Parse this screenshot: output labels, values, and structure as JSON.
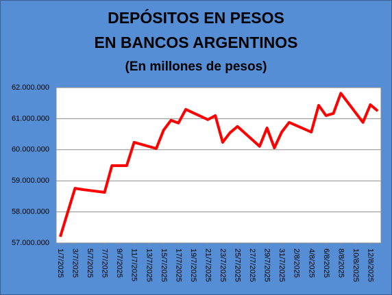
{
  "chart_data": {
    "type": "line",
    "title": [
      "DEPÓSITOS EN PESOS",
      "EN BANCOS ARGENTINOS"
    ],
    "subtitle": "(En millones de pesos)",
    "x": [
      "1/7/2025",
      "2/7/2025",
      "3/7/2025",
      "4/7/2025",
      "7/7/2025",
      "8/7/2025",
      "10/7/2025",
      "11/7/2025",
      "14/7/2025",
      "15/7/2025",
      "16/7/2025",
      "17/7/2025",
      "18/7/2025",
      "21/7/2025",
      "22/7/2025",
      "23/7/2025",
      "24/7/2025",
      "25/7/2025",
      "28/7/2025",
      "29/7/2025",
      "30/7/2025",
      "31/7/2025",
      "1/8/2025",
      "4/8/2025",
      "5/8/2025",
      "6/8/2025",
      "7/8/2025",
      "8/8/2025",
      "11/8/2025",
      "12/8/2025",
      "13/8/2025"
    ],
    "series": [
      {
        "name": "Depósitos",
        "color": "#ff0000",
        "values": [
          57200000,
          57980000,
          58760000,
          58720000,
          58630000,
          59490000,
          59490000,
          60240000,
          60040000,
          60630000,
          60950000,
          60860000,
          61300000,
          60970000,
          61100000,
          60240000,
          60550000,
          60750000,
          60110000,
          60700000,
          60060000,
          60570000,
          60880000,
          60570000,
          61430000,
          61100000,
          61170000,
          61820000,
          60880000,
          61450000,
          61250000
        ]
      }
    ],
    "xticks": [
      "1/7/2025",
      "3/7/2025",
      "5/7/2025",
      "7/7/2025",
      "9/7/2025",
      "11/7/2025",
      "13/7/2025",
      "15/7/2025",
      "17/7/2025",
      "19/7/2025",
      "21/7/2025",
      "23/7/2025",
      "25/7/2025",
      "27/7/2025",
      "29/7/2025",
      "31/7/2025",
      "2/8/2025",
      "4/8/2025",
      "6/8/2025",
      "8/8/2025",
      "10/8/2025",
      "12/8/2025"
    ],
    "ylim": [
      57000000,
      62000000
    ],
    "yticks": [
      {
        "value": 57000000,
        "label": "57.000.000"
      },
      {
        "value": 58000000,
        "label": "58.000.000"
      },
      {
        "value": 59000000,
        "label": "59.000.000"
      },
      {
        "value": 60000000,
        "label": "60.000.000"
      },
      {
        "value": 61000000,
        "label": "61.000.000"
      },
      {
        "value": 62000000,
        "label": "62.000.000"
      }
    ],
    "grid": true
  }
}
